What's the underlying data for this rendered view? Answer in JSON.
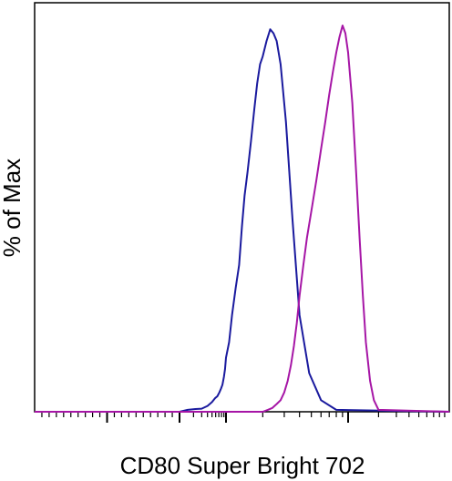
{
  "chart_data": {
    "type": "line",
    "title": "",
    "xlabel": "CD80 Super Bright 702",
    "ylabel": "% of Max",
    "scale": "log (biexponential flow cytometry axis)",
    "xlim": [
      -1000,
      1000000
    ],
    "ylim": [
      0,
      100
    ],
    "grid": false,
    "legend": "none",
    "colors": {
      "axis": "#000000",
      "background": "#ffffff"
    },
    "series": [
      {
        "color": "#1a1a9e",
        "x": [
          -1000,
          1000,
          1500,
          2200,
          3000,
          4000,
          5000,
          5800,
          6500,
          7200,
          7800,
          8400,
          9000,
          9500,
          10000,
          10600,
          11200,
          12000,
          12800,
          13500,
          14200,
          15000,
          16000,
          17000,
          18000,
          19000,
          20000,
          21500,
          23000,
          24500,
          26000,
          28000,
          31000,
          35000,
          40000,
          48000,
          60000,
          80000,
          1000000
        ],
        "y": [
          0,
          0,
          0.5,
          0.7,
          0.8,
          1.5,
          2.5,
          3.5,
          4,
          5,
          6,
          7,
          9,
          11,
          14,
          18,
          25,
          32,
          38,
          48,
          56,
          62,
          70,
          78,
          85,
          90,
          92,
          96,
          99,
          98,
          96,
          90,
          75,
          50,
          25,
          10,
          3,
          0.5,
          0
        ]
      },
      {
        "color": "#a616a6",
        "x": [
          -1000,
          20000,
          22000,
          24000,
          26000,
          28000,
          30000,
          32000,
          34000,
          36000,
          38000,
          40000,
          43000,
          46000,
          50000,
          55000,
          60000,
          65000,
          70000,
          75000,
          80000,
          85000,
          90000,
          95000,
          100000,
          110000,
          120000,
          130000,
          140000,
          150000,
          165000,
          180000,
          200000,
          1000000
        ],
        "y": [
          0,
          0,
          0.5,
          1,
          2,
          3,
          5,
          8,
          12,
          17,
          23,
          30,
          38,
          45,
          52,
          60,
          68,
          75,
          82,
          88,
          93,
          97,
          100,
          98,
          93,
          80,
          62,
          45,
          30,
          18,
          8,
          3,
          0.5,
          0
        ]
      }
    ]
  }
}
